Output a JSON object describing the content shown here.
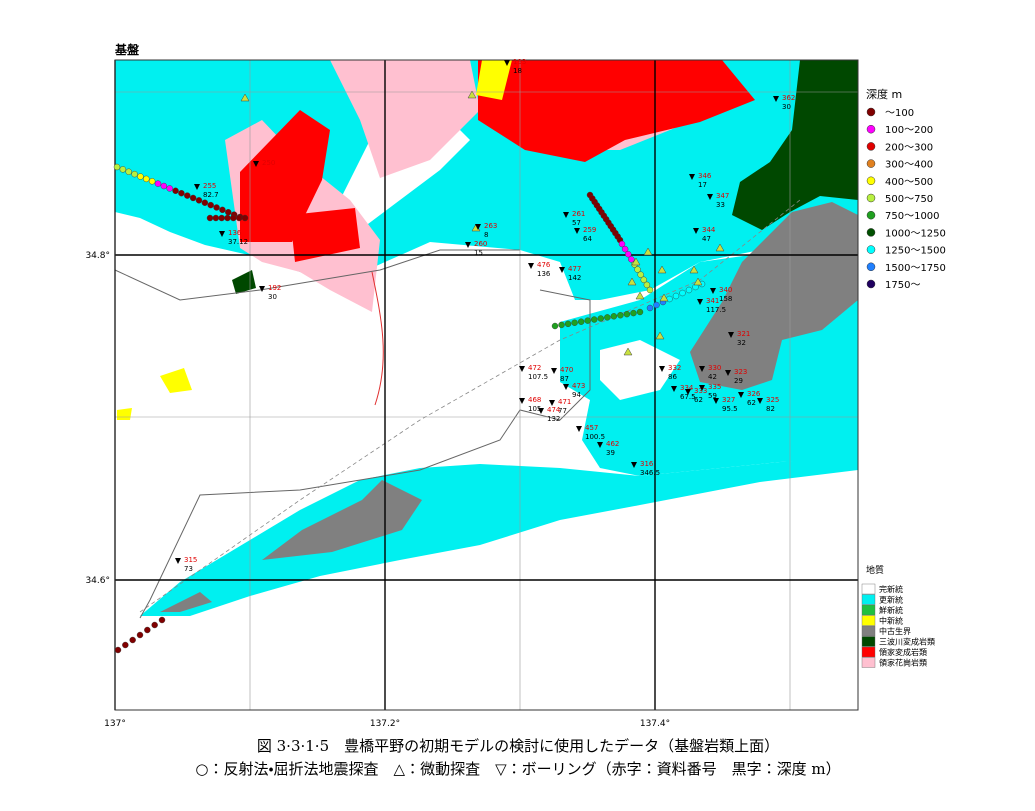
{
  "map": {
    "title": "基盤",
    "lon_labels": [
      "137°",
      "137.2°",
      "137.4°"
    ],
    "lat_labels": [
      "34.8°",
      "34.6°"
    ],
    "depth_legend": {
      "title": "深度 m",
      "items": [
        {
          "label": "～100",
          "color": "#800000"
        },
        {
          "label": "100～200",
          "color": "#ff00ff"
        },
        {
          "label": "200～300",
          "color": "#e00000"
        },
        {
          "label": "300～400",
          "color": "#e08020"
        },
        {
          "label": "400～500",
          "color": "#ffff00"
        },
        {
          "label": "500～750",
          "color": "#b8f040"
        },
        {
          "label": "750～1000",
          "color": "#20a020"
        },
        {
          "label": "1000～1250",
          "color": "#005000"
        },
        {
          "label": "1250～1500",
          "color": "#00ffff"
        },
        {
          "label": "1500～1750",
          "color": "#2080ff"
        },
        {
          "label": "1750～",
          "color": "#200060"
        }
      ]
    },
    "geology_legend": {
      "title": "地質",
      "items": [
        {
          "label": "完新統",
          "color": "#ffffff"
        },
        {
          "label": "更新統",
          "color": "#00f0f0"
        },
        {
          "label": "鮮新統",
          "color": "#20c040"
        },
        {
          "label": "中新統",
          "color": "#ffff00"
        },
        {
          "label": "中古生界",
          "color": "#808080"
        },
        {
          "label": "三波川変成岩類",
          "color": "#004800"
        },
        {
          "label": "領家変成岩類",
          "color": "#ff0000"
        },
        {
          "label": "領家花崗岩類",
          "color": "#ffc0d0"
        }
      ]
    },
    "boreholes": [
      {
        "id": "193",
        "depth": "18"
      },
      {
        "id": "362",
        "depth": "30"
      },
      {
        "id": "250"
      },
      {
        "id": "255",
        "depth": "82.7"
      },
      {
        "id": "136",
        "depth": "37.12"
      },
      {
        "id": "263",
        "depth": "8"
      },
      {
        "id": "260",
        "depth": "15"
      },
      {
        "id": "261",
        "depth": "57"
      },
      {
        "id": "259",
        "depth": "64"
      },
      {
        "id": "346",
        "depth": "17"
      },
      {
        "id": "347",
        "depth": "33"
      },
      {
        "id": "344",
        "depth": "47"
      },
      {
        "id": "476",
        "depth": "136"
      },
      {
        "id": "477",
        "depth": "142"
      },
      {
        "id": "192",
        "depth": "30"
      },
      {
        "id": "341",
        "depth": "117.5"
      },
      {
        "id": "340",
        "depth": "158"
      },
      {
        "id": "321",
        "depth": "32"
      },
      {
        "id": "472",
        "depth": "107.5"
      },
      {
        "id": "470",
        "depth": "87"
      },
      {
        "id": "332",
        "depth": "86"
      },
      {
        "id": "330",
        "depth": "42"
      },
      {
        "id": "323",
        "depth": "29"
      },
      {
        "id": "468",
        "depth": "105"
      },
      {
        "id": "473",
        "depth": "94"
      },
      {
        "id": "471",
        "depth": "77"
      },
      {
        "id": "474",
        "depth": "132"
      },
      {
        "id": "334",
        "depth": "67.5"
      },
      {
        "id": "333",
        "depth": "62"
      },
      {
        "id": "335",
        "depth": "59"
      },
      {
        "id": "327",
        "depth": "95.5"
      },
      {
        "id": "326",
        "depth": "62"
      },
      {
        "id": "325",
        "depth": "82"
      },
      {
        "id": "457",
        "depth": "100.5"
      },
      {
        "id": "462",
        "depth": "39"
      },
      {
        "id": "316",
        "depth": "346.5"
      },
      {
        "id": "315",
        "depth": "73"
      }
    ],
    "caption": [
      "図 3·3·1·5　豊橋平野の初期モデルの検討に使用したデータ（基盤岩類上面）",
      "○：反射法・屈折法地震探査　△：微動探査　▽：ボーリング（赤字：資料番号　黒字：深度 m）"
    ]
  }
}
